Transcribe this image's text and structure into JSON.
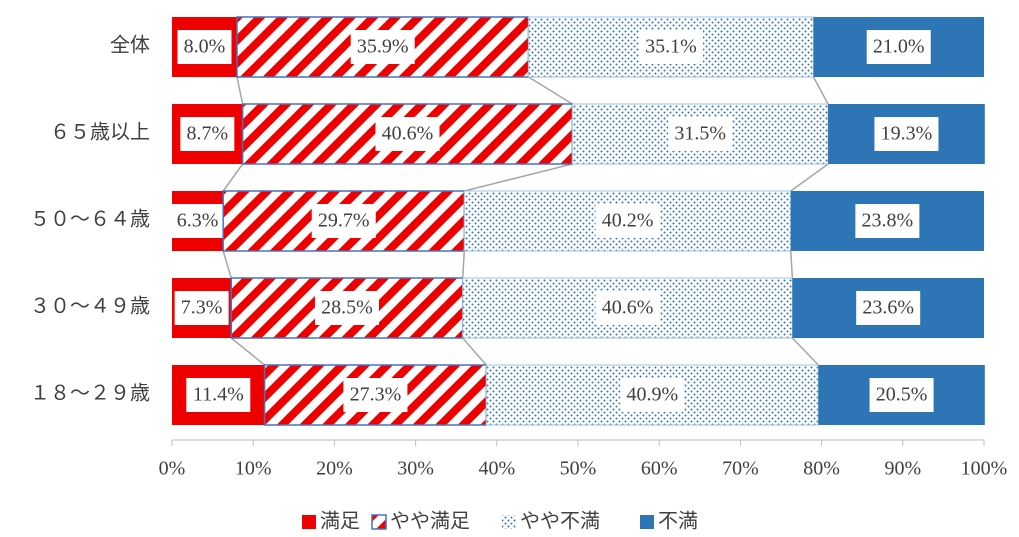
{
  "chart_data": {
    "type": "stacked_barh",
    "categories": [
      "全体",
      "６５歳以上",
      "５０～６４歳",
      "３０～４９歳",
      "１８～２９歳"
    ],
    "series": [
      {
        "name": "満足",
        "color": "#ee0000",
        "pattern": "solid",
        "values": [
          8.0,
          8.7,
          6.3,
          7.3,
          11.4
        ],
        "value_labels": [
          "8.0%",
          "8.7%",
          "6.3%",
          "7.3%",
          "11.4%"
        ]
      },
      {
        "name": "やや満足",
        "color": "#ee0000",
        "pattern": "stripes",
        "values": [
          35.9,
          40.6,
          29.7,
          28.5,
          27.3
        ],
        "value_labels": [
          "35.9%",
          "40.6%",
          "29.7%",
          "28.5%",
          "27.3%"
        ]
      },
      {
        "name": "やや不満",
        "color": "#2e75b6",
        "pattern": "dots",
        "values": [
          35.1,
          31.5,
          40.2,
          40.6,
          40.9
        ],
        "value_labels": [
          "35.1%",
          "31.5%",
          "40.2%",
          "40.6%",
          "40.9%"
        ]
      },
      {
        "name": "不満",
        "color": "#2e75b6",
        "pattern": "solid",
        "values": [
          21.0,
          19.3,
          23.8,
          23.6,
          20.5
        ],
        "value_labels": [
          "21.0%",
          "19.3%",
          "23.8%",
          "23.6%",
          "20.5%"
        ]
      }
    ],
    "xlim": [
      0,
      100
    ],
    "xticks": [
      {
        "value": 0,
        "label": "0%"
      },
      {
        "value": 10,
        "label": "10%"
      },
      {
        "value": 20,
        "label": "20%"
      },
      {
        "value": 30,
        "label": "30%"
      },
      {
        "value": 40,
        "label": "40%"
      },
      {
        "value": 50,
        "label": "50%"
      },
      {
        "value": 60,
        "label": "60%"
      },
      {
        "value": 70,
        "label": "70%"
      },
      {
        "value": 80,
        "label": "80%"
      },
      {
        "value": 90,
        "label": "90%"
      },
      {
        "value": 100,
        "label": "100%"
      }
    ],
    "legend": "bottom"
  }
}
